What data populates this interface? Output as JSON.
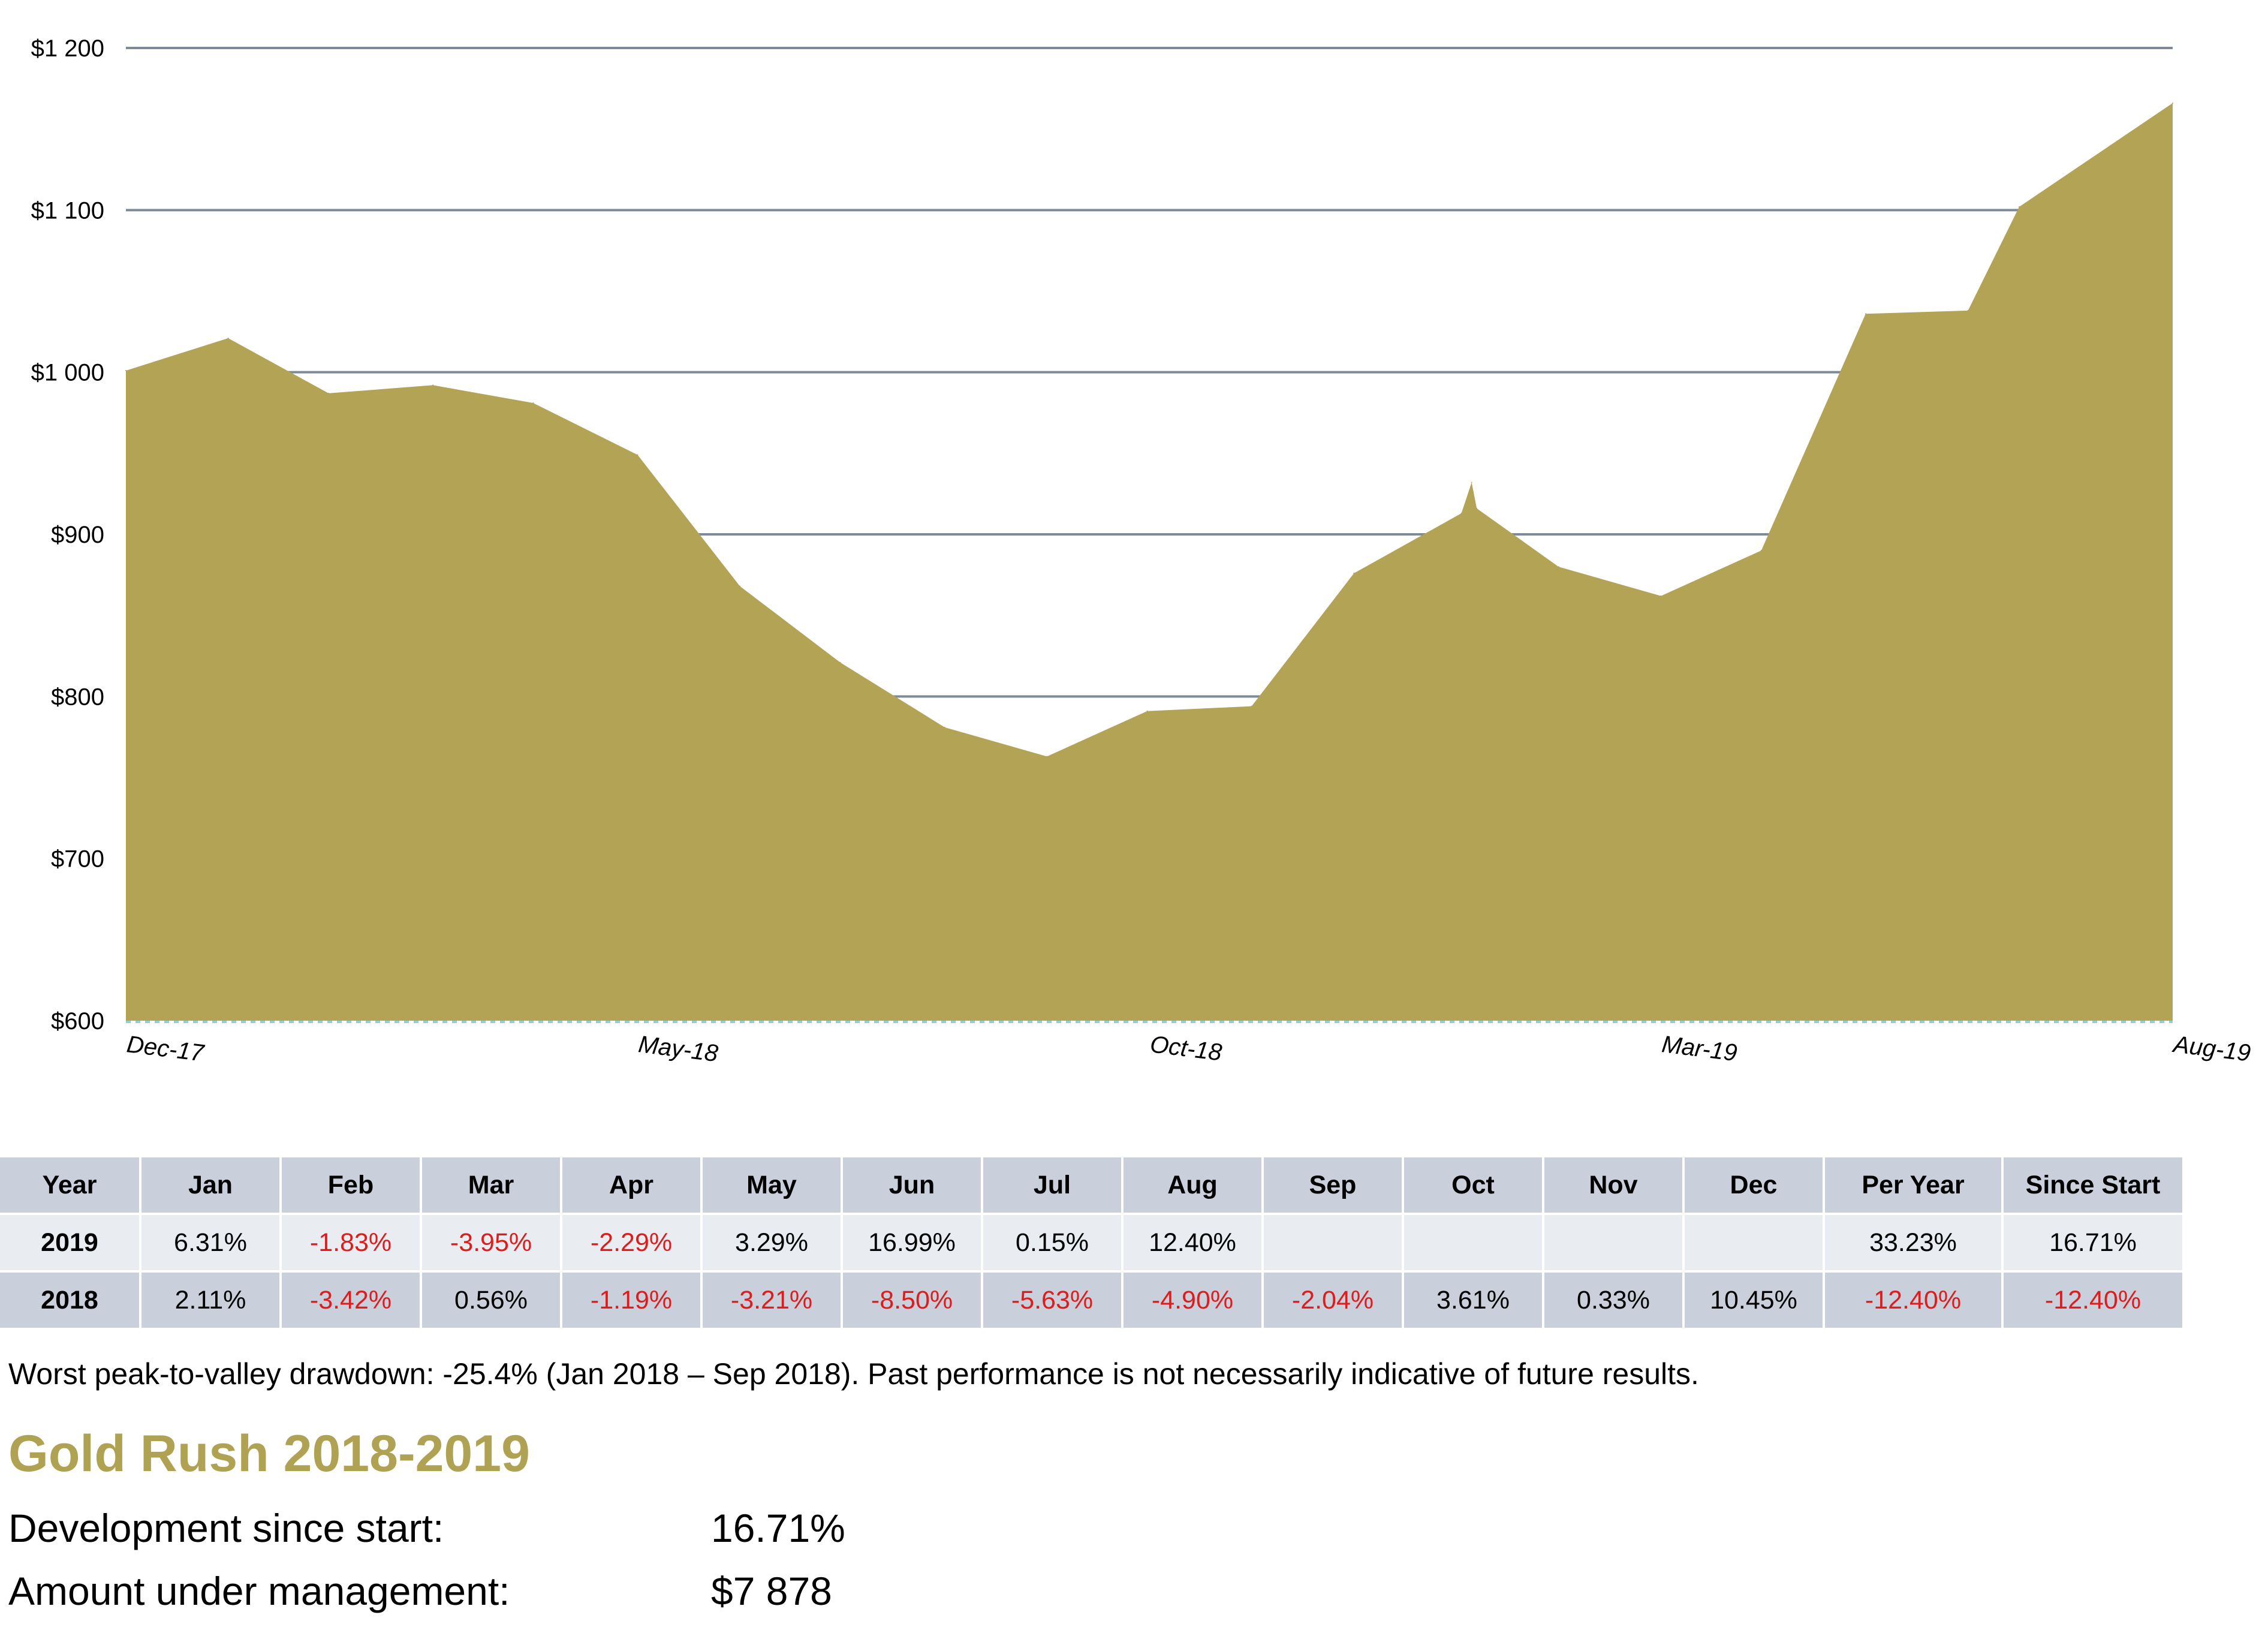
{
  "chart_data": {
    "type": "area",
    "title": "",
    "xlabel": "",
    "ylabel": "",
    "color": "#b2a355",
    "ylim": [
      600,
      1200
    ],
    "yticks": [
      600,
      700,
      800,
      900,
      1000,
      1100,
      1200
    ],
    "ytick_labels": [
      "$600",
      "$700",
      "$800",
      "$900",
      "$1 000",
      "$1 100",
      "$1 200"
    ],
    "xticks": [
      {
        "label": "Dec-17",
        "index": 0
      },
      {
        "label": "May-18",
        "index": 5
      },
      {
        "label": "Oct-18",
        "index": 10
      },
      {
        "label": "Mar-19",
        "index": 15
      },
      {
        "label": "Aug-19",
        "index": 20
      }
    ],
    "grid": true,
    "points": [
      {
        "i": 0,
        "v": 1001
      },
      {
        "i": 1,
        "v": 1021
      },
      {
        "i": 1.98,
        "v": 987
      },
      {
        "i": 3,
        "v": 992
      },
      {
        "i": 3.98,
        "v": 981
      },
      {
        "i": 5,
        "v": 949
      },
      {
        "i": 6,
        "v": 868
      },
      {
        "i": 6.98,
        "v": 821
      },
      {
        "i": 8,
        "v": 781
      },
      {
        "i": 9,
        "v": 763
      },
      {
        "i": 9.98,
        "v": 791
      },
      {
        "i": 11,
        "v": 794
      },
      {
        "i": 12,
        "v": 876
      },
      {
        "i": 13.05,
        "v": 913
      },
      {
        "i": 13.15,
        "v": 932
      },
      {
        "i": 13.2,
        "v": 916
      },
      {
        "i": 14,
        "v": 880
      },
      {
        "i": 15,
        "v": 862
      },
      {
        "i": 15.98,
        "v": 890
      },
      {
        "i": 17,
        "v": 1036
      },
      {
        "i": 18,
        "v": 1038
      },
      {
        "i": 18.5,
        "v": 1102
      },
      {
        "i": 20,
        "v": 1166
      }
    ]
  },
  "table": {
    "headers": [
      "Year",
      "Jan",
      "Feb",
      "Mar",
      "Apr",
      "May",
      "Jun",
      "Jul",
      "Aug",
      "Sep",
      "Oct",
      "Nov",
      "Dec",
      "Per Year",
      "Since Start"
    ],
    "rows": [
      {
        "year": "2019",
        "cells": [
          "6.31%",
          "-1.83%",
          "-3.95%",
          "-2.29%",
          "3.29%",
          "16.99%",
          "0.15%",
          "12.40%",
          "",
          "",
          "",
          "",
          "33.23%",
          "16.71%"
        ]
      },
      {
        "year": "2018",
        "cells": [
          "2.11%",
          "-3.42%",
          "0.56%",
          "-1.19%",
          "-3.21%",
          "-8.50%",
          "-5.63%",
          "-4.90%",
          "-2.04%",
          "3.61%",
          "0.33%",
          "10.45%",
          "-12.40%",
          "-12.40%"
        ]
      }
    ],
    "negative_color": "#e01b1b"
  },
  "disclaimer": "Worst peak-to-valley drawdown: -25.4%  (Jan 2018 – Sep 2018). Past performance is not necessarily indicative of future results.",
  "fund": {
    "title": "Gold Rush 2018-2019",
    "title_color": "#b0a253",
    "development_label": "Development since start:",
    "development_value": "16.71%",
    "aum_label": "Amount under management:",
    "aum_value": "$7 878"
  }
}
